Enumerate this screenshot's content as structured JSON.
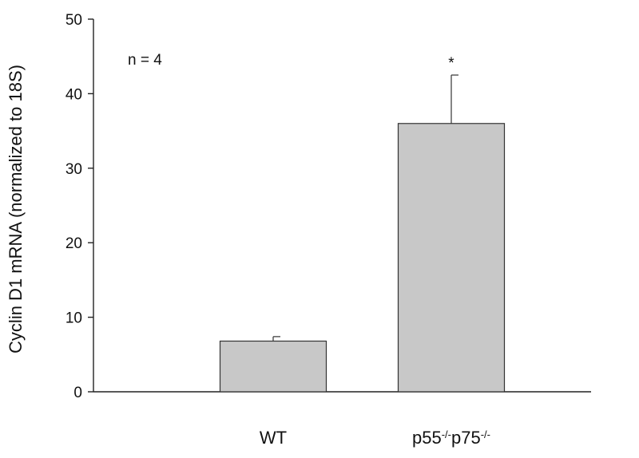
{
  "chart_data": {
    "type": "bar",
    "categories": [
      "WT",
      "p55-/-p75-/-"
    ],
    "category_parts": [
      [
        {
          "t": "WT",
          "sup": false
        }
      ],
      [
        {
          "t": "p55",
          "sup": false
        },
        {
          "t": "-/-",
          "sup": true
        },
        {
          "t": "p75",
          "sup": false
        },
        {
          "t": "-/-",
          "sup": true
        }
      ]
    ],
    "values": [
      6.8,
      36.0
    ],
    "error_plus": [
      0.6,
      6.5
    ],
    "significance": [
      "",
      "*"
    ],
    "ylabel": "Cyclin D1 mRNA (normalized to 18S)",
    "xlabel": "",
    "ylim": [
      0,
      50
    ],
    "yticks": [
      0,
      10,
      20,
      30,
      40,
      50
    ],
    "annotation": "n = 4",
    "bar_color": "#c8c8c8",
    "grid": false,
    "legend": "none"
  }
}
